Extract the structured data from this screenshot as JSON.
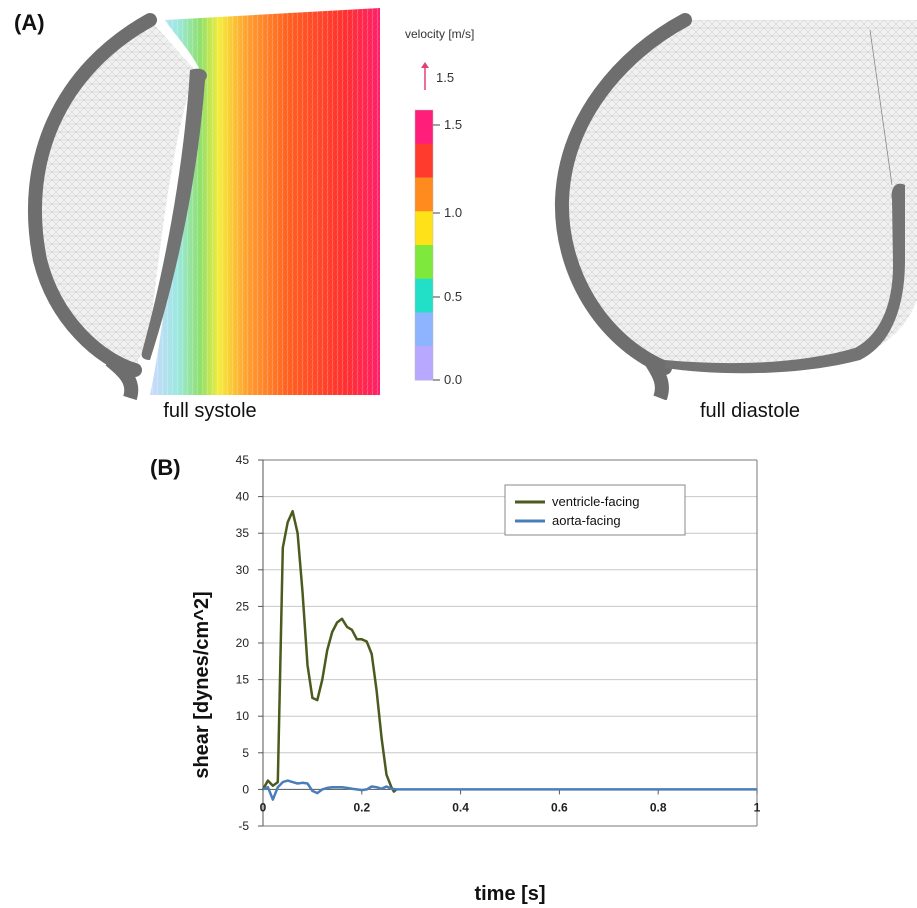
{
  "panel_a": {
    "label": "(A)",
    "left_caption": "full systole",
    "right_caption": "full diastole",
    "colorbar": {
      "title": "velocity [m/s]",
      "arrow_label": "1.5",
      "ticks": [
        "1.5",
        "1.0",
        "0.5",
        "0.0"
      ],
      "colors": [
        "#ff1f7a",
        "#ff3b2e",
        "#ff8a1e",
        "#ffe11a",
        "#7ee83c",
        "#22e0c8",
        "#8fb4ff",
        "#b8a8ff"
      ]
    }
  },
  "panel_b": {
    "label": "(B)"
  },
  "chart_data": {
    "type": "line",
    "title": "",
    "xlabel": "time [s]",
    "ylabel": "shear [dynes/cm^2]",
    "xlim": [
      0,
      1
    ],
    "ylim": [
      -5,
      45
    ],
    "xticks": [
      "0",
      "0.2",
      "0.4",
      "0.6",
      "0.8",
      "1"
    ],
    "yticks": [
      "-5",
      "0",
      "5",
      "10",
      "15",
      "20",
      "25",
      "30",
      "35",
      "40",
      "45"
    ],
    "grid": "horizontal",
    "legend_position": "top-right",
    "series": [
      {
        "name": "ventricle-facing",
        "color": "#4b5a1e",
        "x": [
          0,
          0.01,
          0.02,
          0.03,
          0.04,
          0.05,
          0.06,
          0.07,
          0.08,
          0.09,
          0.1,
          0.11,
          0.12,
          0.13,
          0.14,
          0.15,
          0.16,
          0.17,
          0.18,
          0.19,
          0.2,
          0.21,
          0.22,
          0.23,
          0.24,
          0.25,
          0.26,
          0.265,
          0.27
        ],
        "y": [
          0,
          1.2,
          0.5,
          1.0,
          33,
          36.5,
          38,
          35,
          27,
          17,
          12.5,
          12.2,
          15,
          19,
          21.5,
          22.8,
          23.3,
          22.2,
          21.8,
          20.5,
          20.5,
          20.2,
          18.5,
          13.5,
          7,
          2,
          0.3,
          -0.3,
          0
        ]
      },
      {
        "name": "aorta-facing",
        "color": "#4a7ebb",
        "x": [
          0,
          0.01,
          0.02,
          0.03,
          0.04,
          0.05,
          0.06,
          0.07,
          0.08,
          0.09,
          0.1,
          0.11,
          0.12,
          0.13,
          0.14,
          0.15,
          0.16,
          0.17,
          0.18,
          0.19,
          0.2,
          0.21,
          0.22,
          0.23,
          0.24,
          0.25,
          0.26,
          0.27,
          0.3,
          0.4,
          0.6,
          0.8,
          1.0
        ],
        "y": [
          0,
          0.3,
          -1.4,
          0.3,
          1.0,
          1.2,
          1.0,
          0.8,
          0.9,
          0.8,
          -0.2,
          -0.5,
          0,
          0.2,
          0.3,
          0.3,
          0.3,
          0.2,
          0.1,
          0,
          -0.1,
          0,
          0.4,
          0.3,
          0.1,
          0.4,
          0.1,
          0,
          0,
          0,
          0,
          0,
          0
        ]
      }
    ]
  }
}
